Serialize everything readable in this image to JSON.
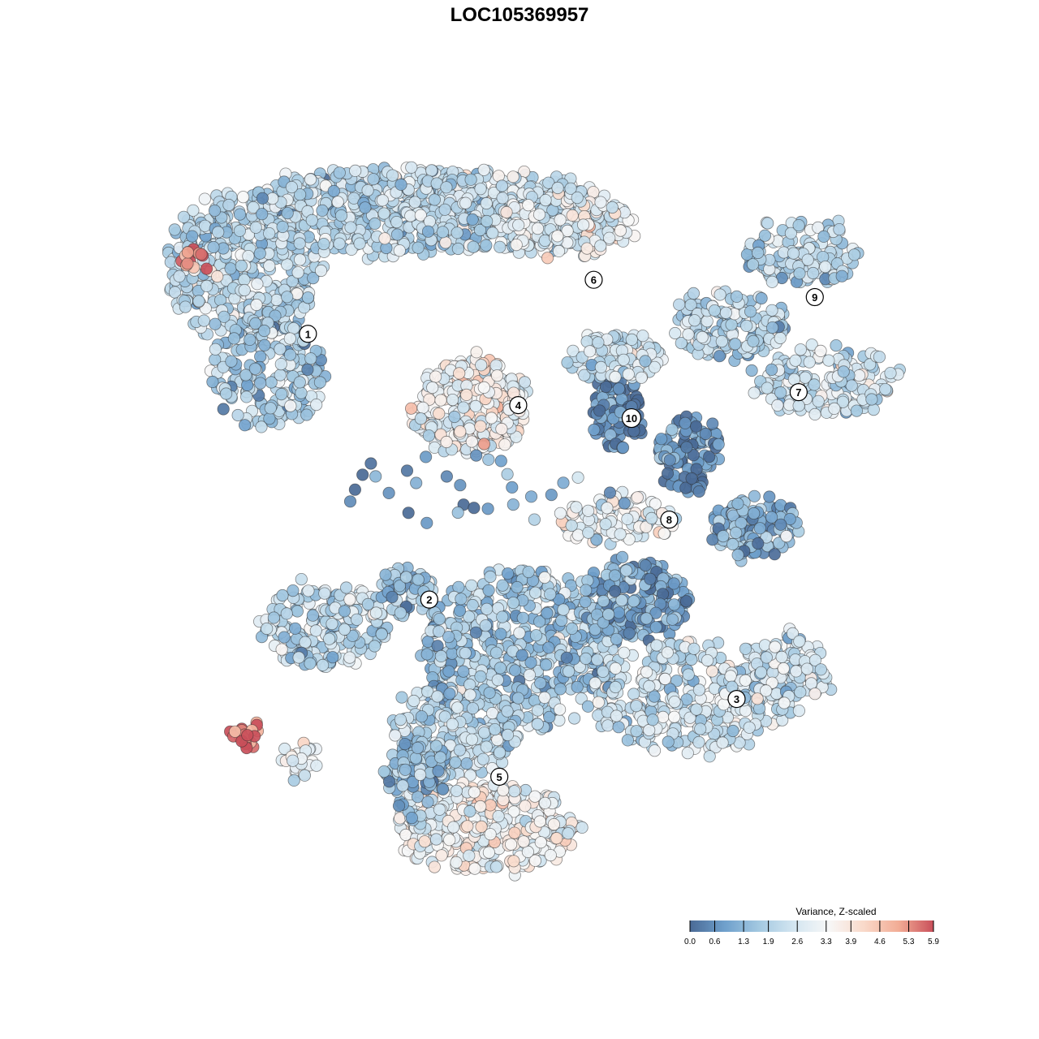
{
  "chart_data": {
    "type": "scatter",
    "title": "LOC105369957",
    "colorbar": {
      "title": "Variance, Z-scaled",
      "ticks": [
        "0.0",
        "0.6",
        "1.3",
        "1.9",
        "2.6",
        "3.3",
        "3.9",
        "4.6",
        "5.3",
        "5.9"
      ],
      "tick_values": [
        0.0,
        0.6,
        1.3,
        1.9,
        2.6,
        3.3,
        3.9,
        4.6,
        5.3,
        5.9
      ],
      "range": [
        0.0,
        5.9
      ],
      "palette": [
        "#4a6a96",
        "#6fa0cc",
        "#a4c9e1",
        "#d4e6f1",
        "#f7f7f7",
        "#f9d9c9",
        "#f2ac95",
        "#c94f5a"
      ],
      "placement": "bottom-right"
    },
    "clusters": [
      {
        "label": "1",
        "x": -8.6,
        "y": 7.5,
        "mean_value": 2.2
      },
      {
        "label": "2",
        "x": -4.1,
        "y": -4.8,
        "mean_value": 1.8
      },
      {
        "label": "3",
        "x": 7.3,
        "y": -9.4,
        "mean_value": 2.4
      },
      {
        "label": "4",
        "x": -0.8,
        "y": 4.2,
        "mean_value": 3.6
      },
      {
        "label": "5",
        "x": -1.5,
        "y": -13.0,
        "mean_value": 3.3
      },
      {
        "label": "6",
        "x": 2.0,
        "y": 10.0,
        "mean_value": 2.9
      },
      {
        "label": "7",
        "x": 9.6,
        "y": 4.8,
        "mean_value": 2.3
      },
      {
        "label": "8",
        "x": 4.8,
        "y": -1.1,
        "mean_value": 2.8
      },
      {
        "label": "9",
        "x": 10.2,
        "y": 9.2,
        "mean_value": 2.1
      },
      {
        "label": "10",
        "x": 3.4,
        "y": 3.6,
        "mean_value": 0.4
      }
    ],
    "grid": false,
    "axes_visible": false,
    "xlim": [
      -14,
      14
    ],
    "ylim": [
      -18,
      16
    ]
  }
}
